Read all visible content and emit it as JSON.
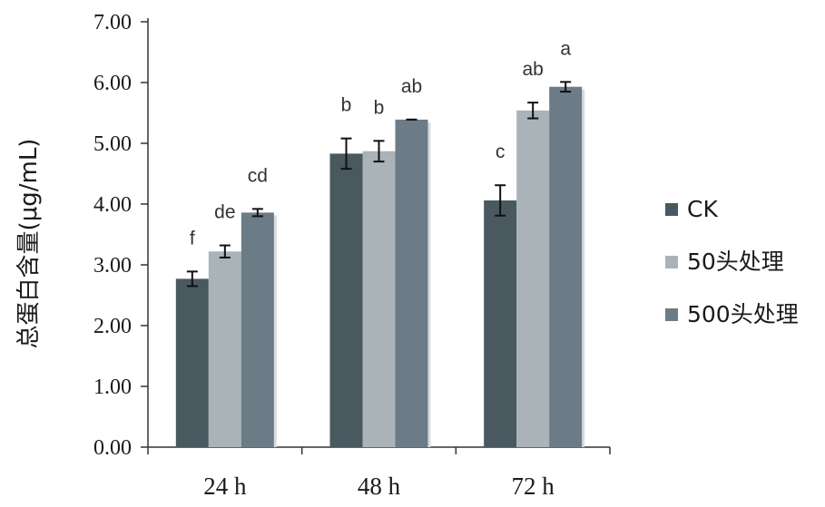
{
  "chart_data": {
    "type": "bar",
    "title": "",
    "xlabel": "",
    "ylabel": "总蛋白含量(μg/mL)",
    "ylim": [
      0,
      7
    ],
    "yticks": [
      "0.00",
      "1.00",
      "2.00",
      "3.00",
      "4.00",
      "5.00",
      "6.00",
      "7.00"
    ],
    "categories": [
      "24 h",
      "48 h",
      "72 h"
    ],
    "legend_position": "right",
    "grid": false,
    "series": [
      {
        "name": "CK",
        "color": "#4a5860",
        "values": [
          2.77,
          4.83,
          4.06
        ],
        "errors": [
          0.12,
          0.25,
          0.25
        ],
        "labels": [
          "f",
          "b",
          "c"
        ]
      },
      {
        "name": "50头处理",
        "color": "#a9b3b8",
        "values": [
          3.22,
          4.87,
          5.54
        ],
        "errors": [
          0.1,
          0.17,
          0.13
        ],
        "labels": [
          "de",
          "b",
          "ab"
        ]
      },
      {
        "name": "500头处理",
        "color": "#6c7c86",
        "values": [
          3.86,
          5.39,
          5.93
        ],
        "errors": [
          0.06,
          0.0,
          0.08
        ],
        "labels": [
          "cd",
          "ab",
          "a"
        ]
      }
    ]
  }
}
